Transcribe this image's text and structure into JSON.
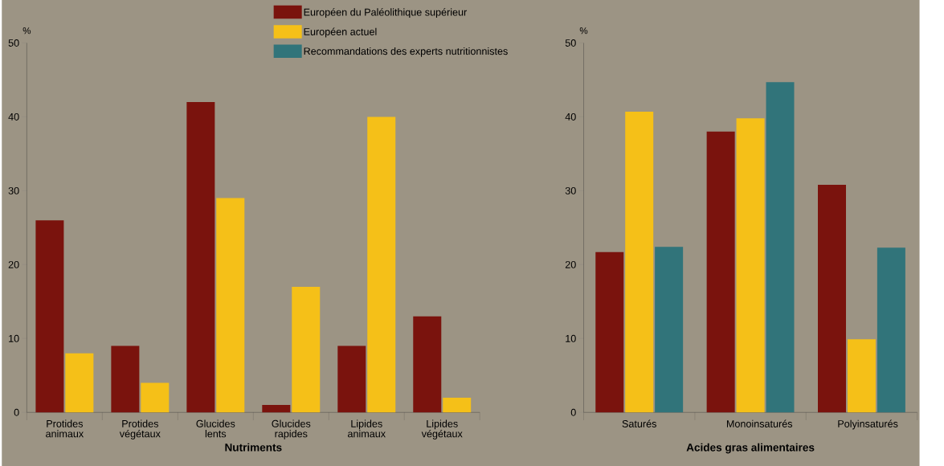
{
  "chart_data": [
    {
      "type": "bar",
      "xlabel": "Nutriments",
      "ylabel": "%",
      "categories": [
        "Protides animaux",
        "Protides végétaux",
        "Glucides lents",
        "Glucides rapides",
        "Lipides animaux",
        "Lipides végétaux"
      ],
      "ylim": [
        0,
        50
      ],
      "yticks": [
        0,
        10,
        20,
        30,
        40,
        50
      ],
      "series": [
        {
          "color": "#7a130d",
          "values": [
            26,
            9,
            42,
            1,
            9,
            13
          ]
        },
        {
          "color": "#f5c018",
          "values": [
            8,
            4,
            29,
            17,
            40,
            2
          ]
        }
      ]
    },
    {
      "type": "bar",
      "xlabel": "Acides gras alimentaires",
      "ylabel": "%",
      "categories": [
        "Saturés",
        "Monoinsaturés",
        "Polyinsaturés"
      ],
      "ylim": [
        0,
        50
      ],
      "yticks": [
        0,
        10,
        20,
        30,
        40,
        50
      ],
      "legend": "top left",
      "series": [
        {
          "name": "Européen du Paléolithique supérieur",
          "color": "#7a130d",
          "values": [
            21.7,
            38,
            30.8
          ]
        },
        {
          "name": "Européen actuel",
          "color": "#f5c018",
          "values": [
            40.7,
            39.8,
            9.9
          ]
        },
        {
          "name": "Recommandations des experts nutritionnistes",
          "color": "#31747a",
          "values": [
            22.4,
            44.7,
            22.3
          ]
        }
      ]
    }
  ]
}
